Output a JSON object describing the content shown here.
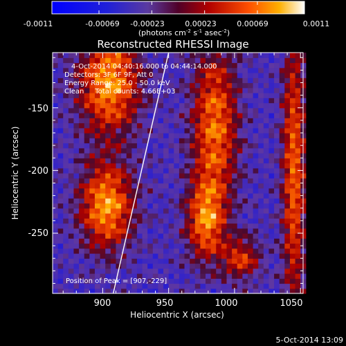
{
  "chart_data": {
    "type": "heatmap",
    "title": "Reconstructed RHESSI Image",
    "xlabel": "Heliocentric X (arcsec)",
    "ylabel": "Heliocentric Y (arcsec)",
    "xlim": [
      862,
      1052
    ],
    "ylim": [
      -298,
      -106
    ],
    "x_ticks": [
      900,
      950,
      1000,
      1050
    ],
    "y_ticks": [
      -150,
      -200,
      -250
    ],
    "colorbar": {
      "range": [
        -0.0011,
        0.0011
      ],
      "tick_values": [
        -0.0011,
        -0.00069,
        -0.00023,
        0.00023,
        0.00069,
        0.0011
      ],
      "tick_labels": [
        "-0.0011",
        "-0.00069",
        "-0.00023",
        "0.00023",
        "0.00069",
        "0.0011"
      ],
      "units_text": "(photons cm",
      "units_exp1": "-2",
      "units_mid": " s",
      "units_exp2": "-1",
      "units_end": " asec",
      "units_exp3": "-2",
      "units_close": ")"
    },
    "info_lines": [
      "4-Oct-2014 04:40:16.000 to 04:44:14.000",
      "Detectors: 3F 6F 9F, Att 0",
      "Energy Range: 25.0 - 50.0 keV",
      "Clean     Total counts: 4.66E+03"
    ],
    "peak_label": "Position of Peak = [907,-229]",
    "peak": [
      907,
      -229
    ],
    "limb_line": {
      "x": [
        908,
        950
      ],
      "y": [
        -298,
        -106
      ]
    },
    "sources": [
      {
        "x": 905,
        "y": -130,
        "sx": 16,
        "sy": 28,
        "amp": 0.0011
      },
      {
        "x": 903,
        "y": -228,
        "sx": 14,
        "sy": 24,
        "amp": 0.0011
      },
      {
        "x": 985,
        "y": -165,
        "sx": 12,
        "sy": 45,
        "amp": 0.00095
      },
      {
        "x": 978,
        "y": -240,
        "sx": 10,
        "sy": 22,
        "amp": 0.0009
      },
      {
        "x": 1045,
        "y": -200,
        "sx": 6,
        "sy": 80,
        "amp": 0.0009
      },
      {
        "x": 1005,
        "y": -270,
        "sx": 10,
        "sy": 12,
        "amp": 0.0007
      }
    ]
  },
  "footer_date": "5-Oct-2014 13:09"
}
